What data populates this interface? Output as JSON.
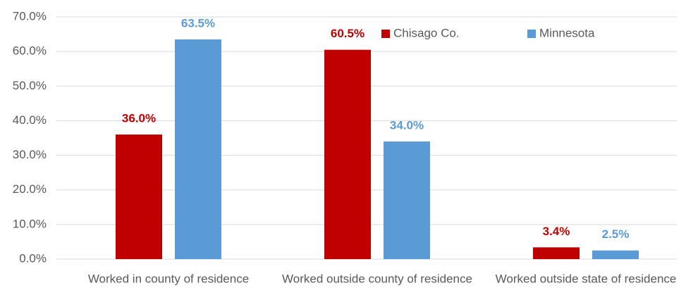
{
  "chart_data": {
    "type": "bar",
    "categories": [
      "Worked in county of residence",
      "Worked outside county of residence",
      "Worked outside state of residence"
    ],
    "series": [
      {
        "name": "Chisago Co.",
        "color": "#c00000",
        "values": [
          36.0,
          60.5,
          3.4
        ],
        "value_labels": [
          "36.0%",
          "60.5%",
          "3.4%"
        ]
      },
      {
        "name": "Minnesota",
        "color": "#5b9bd5",
        "values": [
          63.5,
          34.0,
          2.5
        ],
        "value_labels": [
          "63.5%",
          "34.0%",
          "2.5%"
        ]
      }
    ],
    "ylim": [
      0,
      70
    ],
    "yticks": [
      {
        "value": 0,
        "label": "0.0%"
      },
      {
        "value": 10,
        "label": "10.0%"
      },
      {
        "value": 20,
        "label": "20.0%"
      },
      {
        "value": 30,
        "label": "30.0%"
      },
      {
        "value": 40,
        "label": "40.0%"
      },
      {
        "value": 50,
        "label": "50.0%"
      },
      {
        "value": 60,
        "label": "60.0%"
      },
      {
        "value": 70,
        "label": "70.0%"
      }
    ],
    "grid": true,
    "legend": "top-right"
  }
}
